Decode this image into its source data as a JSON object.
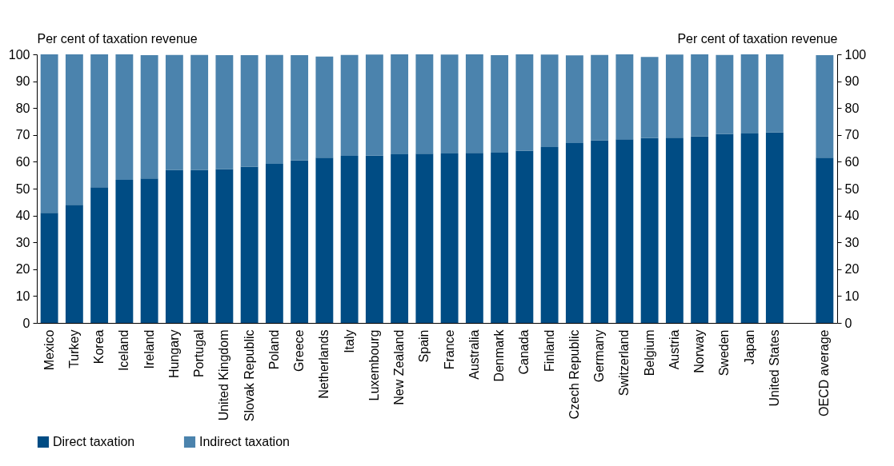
{
  "chart_data": {
    "type": "bar",
    "stacked": true,
    "categories": [
      "Mexico",
      "Turkey",
      "Korea",
      "Iceland",
      "Ireland",
      "Hungary",
      "Portugal",
      "United Kingdom",
      "Slovak Republic",
      "Poland",
      "Greece",
      "Netherlands",
      "Italy",
      "Luxembourg",
      "New Zealand",
      "Spain",
      "France",
      "Australia",
      "Denmark",
      "Canada",
      "Finland",
      "Czech Republic",
      "Germany",
      "Switzerland",
      "Belgium",
      "Austria",
      "Norway",
      "Sweden",
      "Japan",
      "United States",
      null,
      "OECD average"
    ],
    "series": [
      {
        "name": "Direct taxation",
        "color": "#004c84",
        "values": [
          41,
          44,
          50.5,
          53.3,
          53.8,
          57,
          57,
          57.3,
          58.2,
          59.2,
          60.5,
          61.5,
          62.2,
          62.3,
          62.8,
          63,
          63.1,
          63.3,
          63.4,
          64.1,
          65.5,
          67,
          68,
          68.4,
          68.8,
          69,
          69.4,
          70.4,
          70.5,
          71,
          null,
          61.5
        ]
      },
      {
        "name": "Indirect taxation",
        "color": "#4b83ad",
        "values": [
          59,
          56,
          49.5,
          46.7,
          45.9,
          42.8,
          42.8,
          42.4,
          41.5,
          40.6,
          39.2,
          37.7,
          37.6,
          37.6,
          37.2,
          37,
          36.8,
          36.7,
          36.3,
          35.9,
          34.4,
          32.6,
          31.8,
          31.6,
          30.2,
          30.9,
          30.6,
          29.4,
          29.5,
          29,
          null,
          38.2
        ]
      }
    ],
    "ylabel": "Per cent of taxation revenue",
    "y2label": "Per cent of taxation revenue",
    "ylim": [
      0,
      100
    ],
    "yticks": [
      0,
      10,
      20,
      30,
      40,
      50,
      60,
      70,
      80,
      90,
      100
    ],
    "y2lim": [
      0,
      100
    ],
    "y2ticks": [
      0,
      10,
      20,
      30,
      40,
      50,
      60,
      70,
      80,
      90,
      100
    ],
    "legend": "bottom",
    "grid": false
  }
}
